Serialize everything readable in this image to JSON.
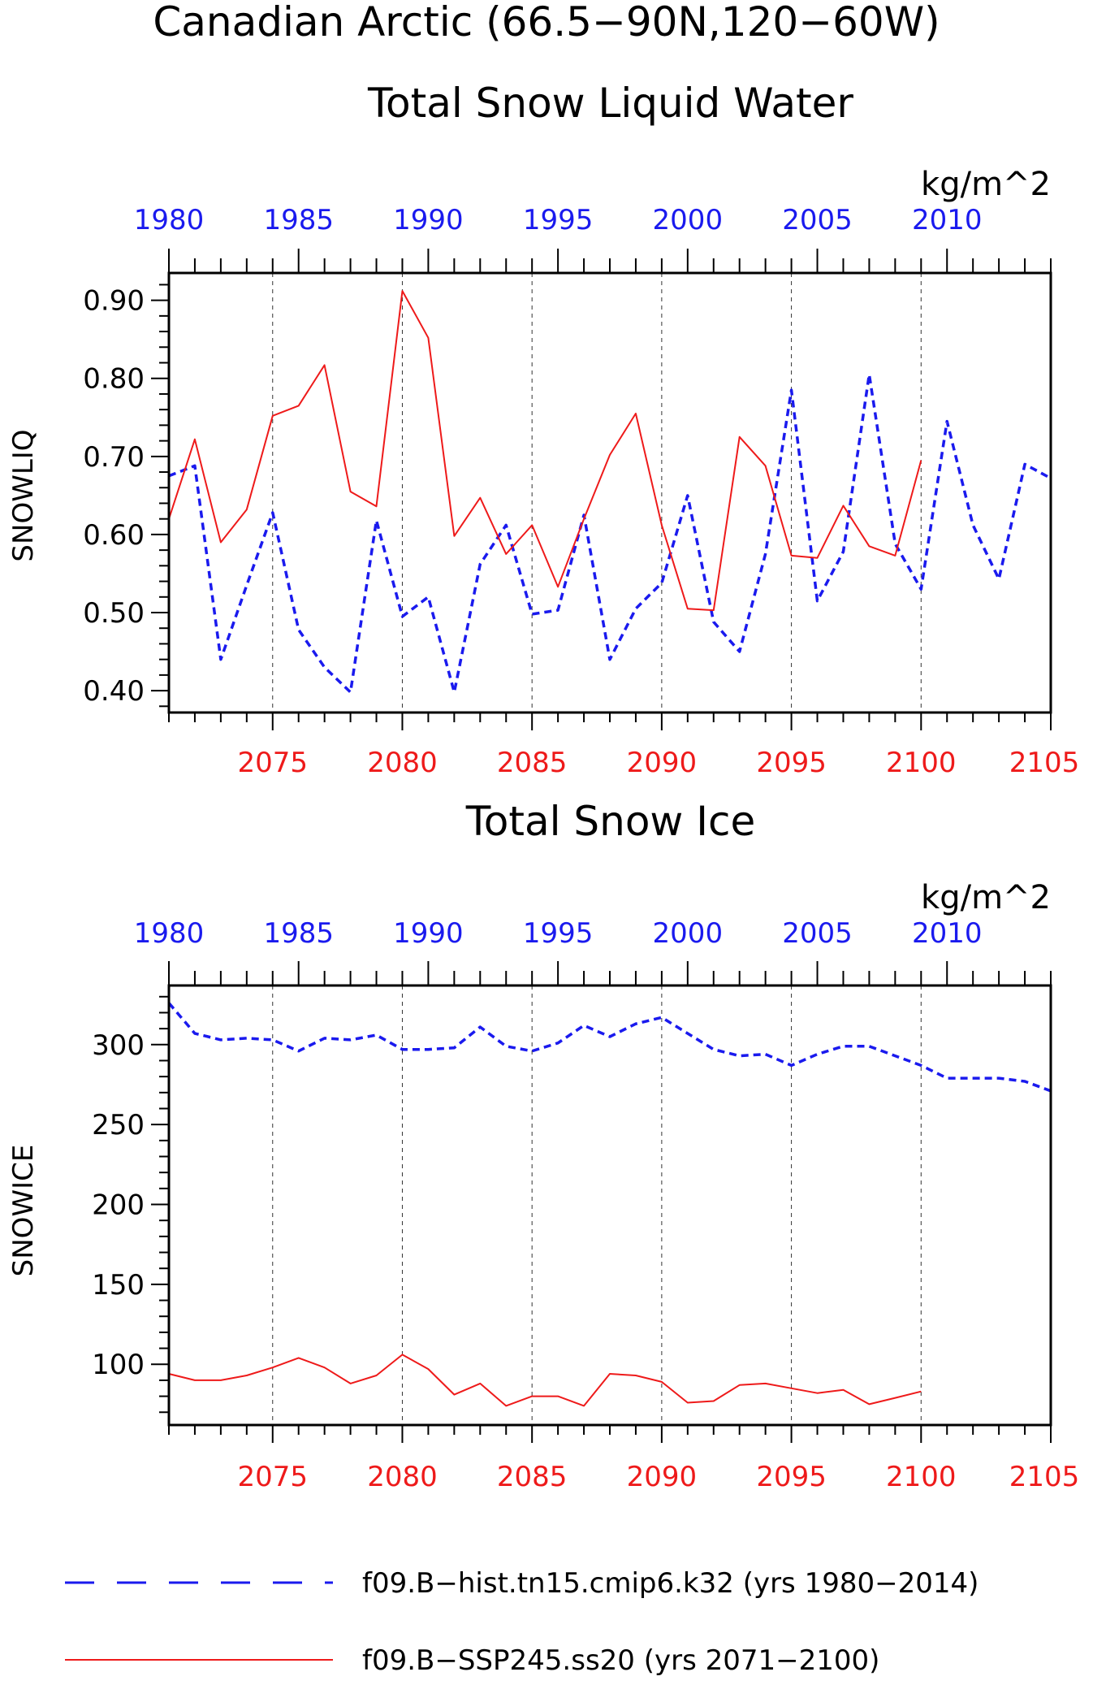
{
  "page": {
    "title_line1": "Canadian Arctic (66.5−90N,120−60W)"
  },
  "colors": {
    "hist": "#1a1aee",
    "ssp": "#ee1a1a",
    "axis": "#000000",
    "grid": "#333333"
  },
  "legend": {
    "hist_label": "f09.B−hist.tn15.cmip6.k32 (yrs 1980−2014)",
    "ssp_label": "f09.B−SSP245.ss20 (yrs 2071−2100)"
  },
  "chart_data": [
    {
      "type": "line",
      "title": "Total Snow Liquid Water",
      "ylabel": "SNOWLIQ",
      "units": "kg/m^2",
      "ylim": [
        0.372,
        0.935
      ],
      "yticks": [
        0.4,
        0.5,
        0.6,
        0.7,
        0.8,
        0.9
      ],
      "ytick_labels": [
        "0.40",
        "0.50",
        "0.60",
        "0.70",
        "0.80",
        "0.90"
      ],
      "yminor_step": 0.02,
      "bottom_axis": {
        "range": [
          2071,
          2105
        ],
        "ticks": [
          2075,
          2080,
          2085,
          2090,
          2095,
          2100,
          2105
        ],
        "tick_labels": [
          "2075",
          "2080",
          "2085",
          "2090",
          "2095",
          "2100",
          "2105"
        ],
        "color": "ssp"
      },
      "top_axis": {
        "range": [
          1980,
          2014
        ],
        "ticks": [
          1980,
          1985,
          1990,
          1995,
          2000,
          2005,
          2010
        ],
        "tick_labels": [
          "1980",
          "1985",
          "1990",
          "1995",
          "2000",
          "2005",
          "2010"
        ],
        "color": "hist"
      },
      "grid": "vertical dashed at bottom-axis major ticks",
      "series": [
        {
          "name": "f09.B−hist.tn15.cmip6.k32 (yrs 1980−2014)",
          "style": "dashed",
          "x": [
            1980,
            1981,
            1982,
            1983,
            1984,
            1985,
            1986,
            1987,
            1988,
            1989,
            1990,
            1991,
            1992,
            1993,
            1994,
            1995,
            1996,
            1997,
            1998,
            1999,
            2000,
            2001,
            2002,
            2003,
            2004,
            2005,
            2006,
            2007,
            2008,
            2009,
            2010,
            2011,
            2012,
            2013,
            2014
          ],
          "values": [
            0.675,
            0.688,
            0.44,
            0.535,
            0.628,
            0.478,
            0.43,
            0.398,
            0.618,
            0.495,
            0.52,
            0.398,
            0.562,
            0.612,
            0.498,
            0.503,
            0.625,
            0.44,
            0.505,
            0.538,
            0.65,
            0.488,
            0.45,
            0.575,
            0.785,
            0.515,
            0.578,
            0.805,
            0.588,
            0.53,
            0.745,
            0.612,
            0.543,
            0.69,
            0.672
          ]
        },
        {
          "name": "f09.B−SSP245.ss20 (yrs 2071−2100)",
          "style": "solid",
          "x": [
            2071,
            2072,
            2073,
            2074,
            2075,
            2076,
            2077,
            2078,
            2079,
            2080,
            2081,
            2082,
            2083,
            2084,
            2085,
            2086,
            2087,
            2088,
            2089,
            2090,
            2091,
            2092,
            2093,
            2094,
            2095,
            2096,
            2097,
            2098,
            2099,
            2100
          ],
          "values": [
            0.62,
            0.722,
            0.59,
            0.632,
            0.752,
            0.765,
            0.817,
            0.655,
            0.636,
            0.912,
            0.852,
            0.598,
            0.647,
            0.575,
            0.612,
            0.533,
            0.62,
            0.702,
            0.755,
            0.612,
            0.505,
            0.503,
            0.725,
            0.688,
            0.573,
            0.57,
            0.637,
            0.585,
            0.573,
            0.695
          ]
        }
      ]
    },
    {
      "type": "line",
      "title": "Total Snow Ice",
      "ylabel": "SNOWICE",
      "units": "kg/m^2",
      "ylim": [
        62,
        337
      ],
      "yticks": [
        100,
        150,
        200,
        250,
        300
      ],
      "ytick_labels": [
        "100",
        "150",
        "200",
        "250",
        "300"
      ],
      "yminor_step": 10,
      "bottom_axis": {
        "range": [
          2071,
          2105
        ],
        "ticks": [
          2075,
          2080,
          2085,
          2090,
          2095,
          2100,
          2105
        ],
        "tick_labels": [
          "2075",
          "2080",
          "2085",
          "2090",
          "2095",
          "2100",
          "2105"
        ],
        "color": "ssp"
      },
      "top_axis": {
        "range": [
          1980,
          2014
        ],
        "ticks": [
          1980,
          1985,
          1990,
          1995,
          2000,
          2005,
          2010
        ],
        "tick_labels": [
          "1980",
          "1985",
          "1990",
          "1995",
          "2000",
          "2005",
          "2010"
        ],
        "color": "hist"
      },
      "grid": "vertical dashed at bottom-axis major ticks",
      "series": [
        {
          "name": "f09.B−hist.tn15.cmip6.k32 (yrs 1980−2014)",
          "style": "dashed",
          "x": [
            1980,
            1981,
            1982,
            1983,
            1984,
            1985,
            1986,
            1987,
            1988,
            1989,
            1990,
            1991,
            1992,
            1993,
            1994,
            1995,
            1996,
            1997,
            1998,
            1999,
            2000,
            2001,
            2002,
            2003,
            2004,
            2005,
            2006,
            2007,
            2008,
            2009,
            2010,
            2011,
            2012,
            2013,
            2014
          ],
          "values": [
            326,
            307,
            303,
            304,
            303,
            296,
            304,
            303,
            306,
            297,
            297,
            298,
            311,
            299,
            296,
            301,
            312,
            305,
            313,
            317,
            307,
            297,
            293,
            294,
            287,
            294,
            299,
            299,
            293,
            287,
            279,
            279,
            279,
            277,
            271
          ]
        },
        {
          "name": "f09.B−SSP245.ss20 (yrs 2071−2100)",
          "style": "solid",
          "x": [
            2071,
            2072,
            2073,
            2074,
            2075,
            2076,
            2077,
            2078,
            2079,
            2080,
            2081,
            2082,
            2083,
            2084,
            2085,
            2086,
            2087,
            2088,
            2089,
            2090,
            2091,
            2092,
            2093,
            2094,
            2095,
            2096,
            2097,
            2098,
            2099,
            2100
          ],
          "values": [
            94,
            90,
            90,
            93,
            98,
            104,
            98,
            88,
            93,
            106,
            97,
            81,
            88,
            74,
            80,
            80,
            74,
            94,
            93,
            89,
            76,
            77,
            87,
            88,
            85,
            82,
            84,
            75,
            79,
            83
          ]
        }
      ]
    }
  ]
}
